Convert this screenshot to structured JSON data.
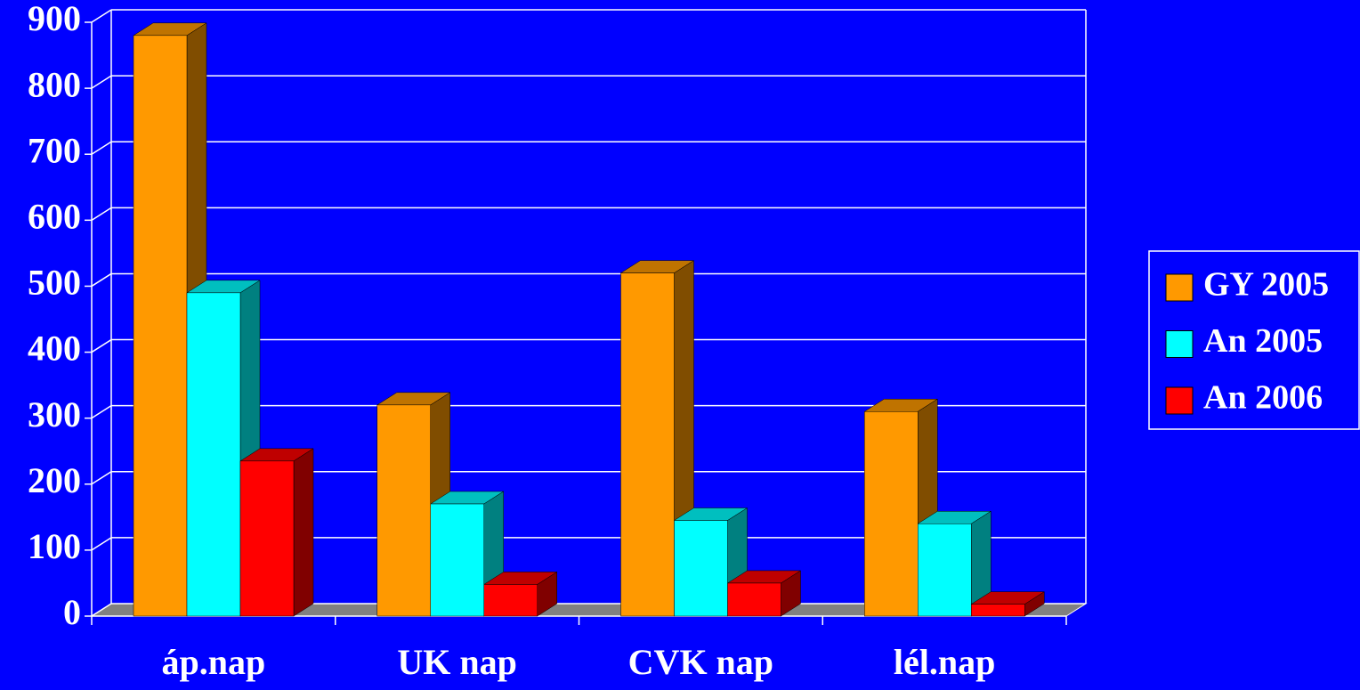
{
  "chart_data": {
    "type": "bar3d",
    "categories": [
      "áp.nap",
      "UK nap",
      "CVK nap",
      "lél.nap"
    ],
    "series": [
      {
        "name": "GY 2005",
        "color": "#ff9900",
        "values": [
          880,
          320,
          520,
          310
        ]
      },
      {
        "name": "An 2005",
        "color": "#00ffff",
        "values": [
          490,
          170,
          145,
          140
        ]
      },
      {
        "name": "An 2006",
        "color": "#ff0000",
        "values": [
          235,
          48,
          50,
          18
        ]
      }
    ],
    "ylim": [
      0,
      900
    ],
    "yticks": [
      0,
      100,
      200,
      300,
      400,
      500,
      600,
      700,
      800,
      900
    ],
    "grid": true,
    "legend": "right"
  }
}
